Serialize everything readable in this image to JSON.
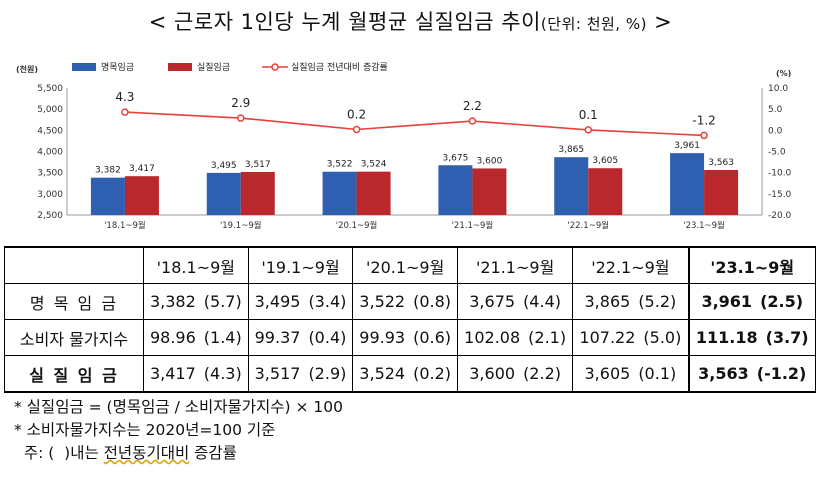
{
  "title": {
    "main": "< 근로자 1인당 누계 월평균 실질임금 추이",
    "unit": "(단위: 천원, %)",
    "suffix": " >"
  },
  "chart_data": {
    "type": "bar",
    "categories": [
      "'18.1~9월",
      "'19.1~9월",
      "'20.1~9월",
      "'21.1~9월",
      "'22.1~9월",
      "'23.1~9월"
    ],
    "series": [
      {
        "name": "명목임금",
        "type": "bar",
        "axis": "left",
        "color": "#2f5fb0",
        "values": [
          3382,
          3495,
          3522,
          3675,
          3865,
          3961
        ]
      },
      {
        "name": "실질임금",
        "type": "bar",
        "axis": "left",
        "color": "#b8282c",
        "values": [
          3417,
          3517,
          3524,
          3600,
          3605,
          3563
        ]
      },
      {
        "name": "실질임금 전년대비 증감률",
        "type": "line",
        "axis": "right",
        "color": "#e8403a",
        "values": [
          4.3,
          2.9,
          0.2,
          2.2,
          0.1,
          -1.2
        ]
      }
    ],
    "bar_labels": [
      [
        "3,382",
        "3,417"
      ],
      [
        "3,495",
        "3,517"
      ],
      [
        "3,522",
        "3,524"
      ],
      [
        "3,675",
        "3,600"
      ],
      [
        "3,865",
        "3,605"
      ],
      [
        "3,961",
        "3,563"
      ]
    ],
    "line_labels": [
      "4.3",
      "2.9",
      "0.2",
      "2.2",
      "0.1",
      "-1.2"
    ],
    "y_left": {
      "label": "(천원)",
      "range": [
        2500,
        5500
      ],
      "ticks": [
        "5,500",
        "5,000",
        "4,500",
        "4,000",
        "3,500",
        "3,000",
        "2,500"
      ]
    },
    "y_right": {
      "label": "(%)",
      "range": [
        -20,
        10
      ],
      "ticks": [
        "10.0",
        "5.0",
        "0.0",
        "-5.0",
        "-10.0",
        "-15.0",
        "-20.0"
      ]
    },
    "legend": {
      "position": "top-left"
    },
    "grid": false
  },
  "table": {
    "headers": [
      "'18.1~9월",
      "'19.1~9월",
      "'20.1~9월",
      "'21.1~9월",
      "'22.1~9월",
      "'23.1~9월"
    ],
    "rows": [
      {
        "label": "명 목 임 금",
        "cells": [
          [
            "3,382",
            "(5.7)"
          ],
          [
            "3,495",
            "(3.4)"
          ],
          [
            "3,522",
            "(0.8)"
          ],
          [
            "3,675",
            "(4.4)"
          ],
          [
            "3,865",
            "(5.2)"
          ],
          [
            "3,961",
            "(2.5)"
          ]
        ]
      },
      {
        "label": "소비자 물가지수",
        "cells": [
          [
            "98.96",
            "(1.4)"
          ],
          [
            "99.37",
            "(0.4)"
          ],
          [
            "99.93",
            "(0.6)"
          ],
          [
            "102.08",
            "(2.1)"
          ],
          [
            "107.22",
            "(5.0)"
          ],
          [
            "111.18",
            "(3.7)"
          ]
        ]
      },
      {
        "label": "실 질 임 금",
        "cells": [
          [
            "3,417",
            "(4.3)"
          ],
          [
            "3,517",
            "(2.9)"
          ],
          [
            "3,524",
            "(0.2)"
          ],
          [
            "3,600",
            "(2.2)"
          ],
          [
            "3,605",
            "(0.1)"
          ],
          [
            "3,563",
            "(-1.2)"
          ]
        ]
      }
    ]
  },
  "notes": {
    "line1": "* 실질임금 = (명목임금 / 소비자물가지수) × 100",
    "line2": "* 소비자물가지수는 2020년=100 기준",
    "line3_prefix": "  주: (  )내는 ",
    "line3_under": "전년동기대비",
    "line3_suffix": " 증감률"
  }
}
